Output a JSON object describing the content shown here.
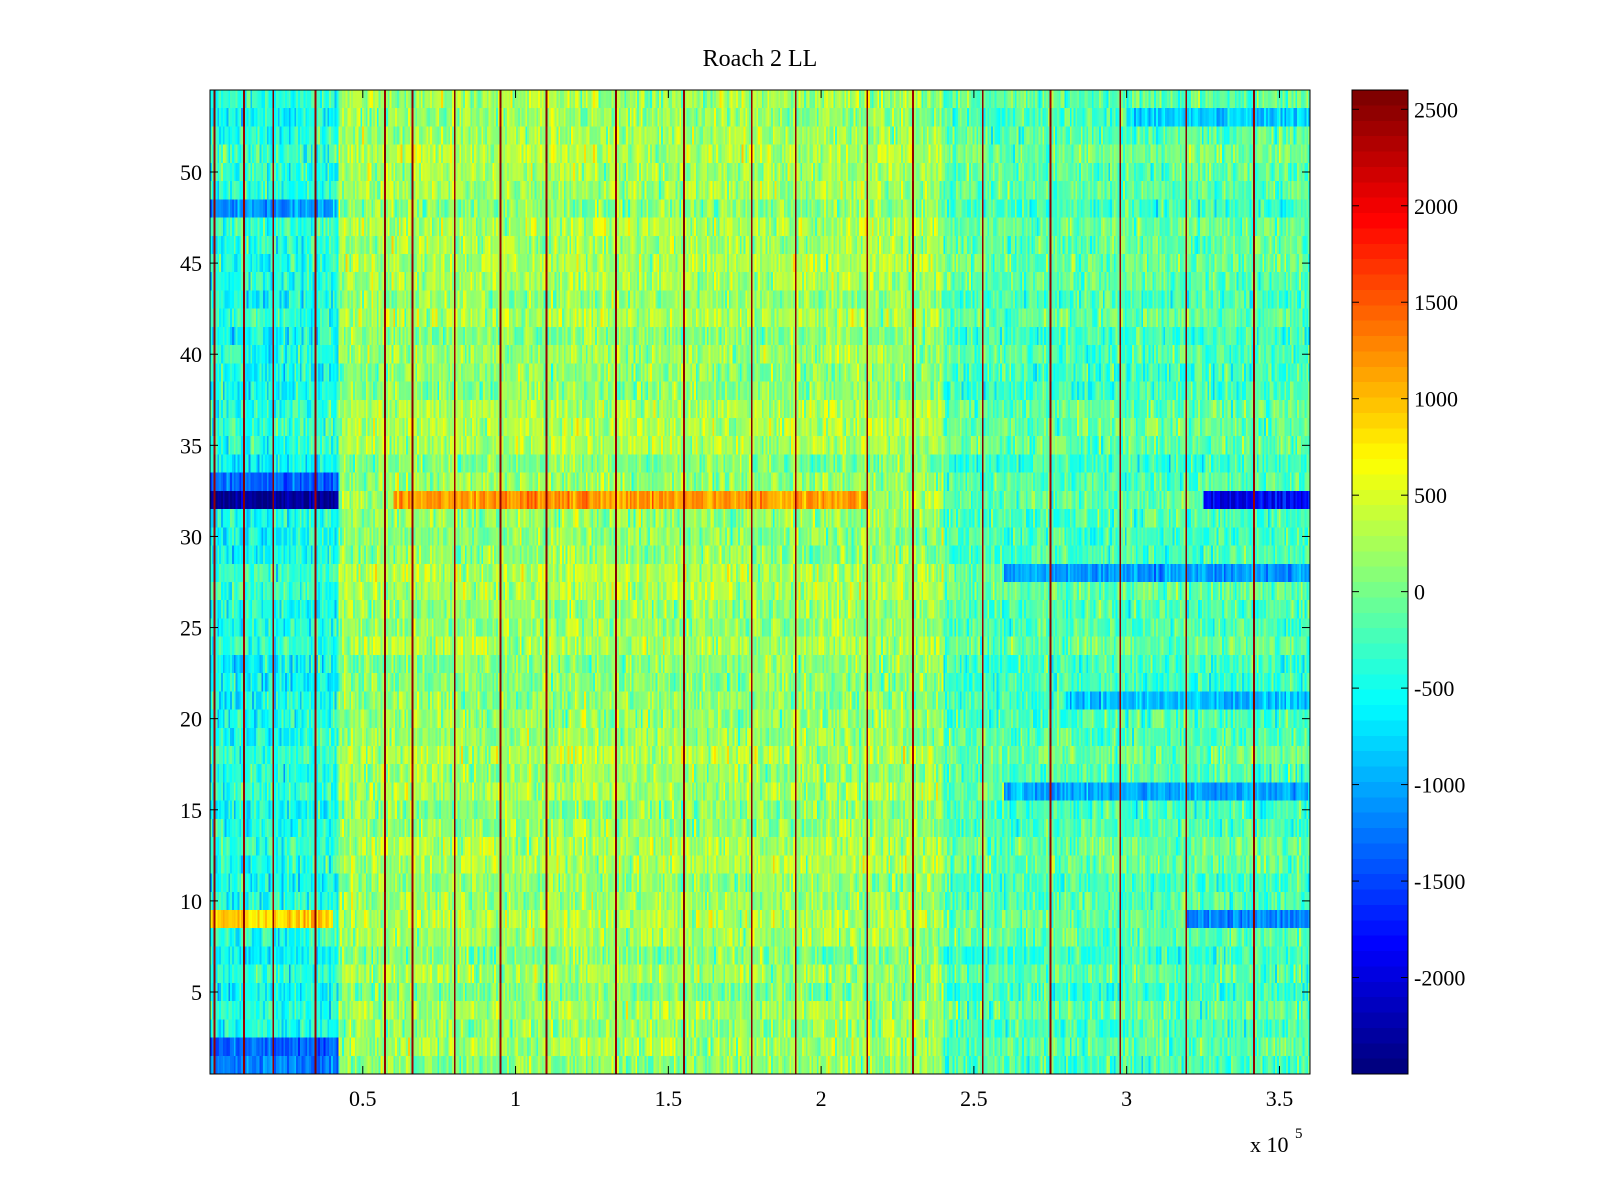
{
  "chart_data": {
    "type": "heatmap",
    "title": "Roach 2 LL",
    "xlabel": "",
    "ylabel": "",
    "xlim": [
      0,
      360000
    ],
    "ylim": [
      0.5,
      54.5
    ],
    "x_exponent_label": "x 10",
    "x_exponent": "5",
    "x_ticks": [
      {
        "value": 50000,
        "label": "0.5"
      },
      {
        "value": 100000,
        "label": "1"
      },
      {
        "value": 150000,
        "label": "1.5"
      },
      {
        "value": 200000,
        "label": "2"
      },
      {
        "value": 250000,
        "label": "2.5"
      },
      {
        "value": 300000,
        "label": "3"
      },
      {
        "value": 350000,
        "label": "3.5"
      }
    ],
    "y_ticks": [
      {
        "value": 5,
        "label": "5"
      },
      {
        "value": 10,
        "label": "10"
      },
      {
        "value": 15,
        "label": "15"
      },
      {
        "value": 20,
        "label": "20"
      },
      {
        "value": 25,
        "label": "25"
      },
      {
        "value": 30,
        "label": "30"
      },
      {
        "value": 35,
        "label": "35"
      },
      {
        "value": 40,
        "label": "40"
      },
      {
        "value": 45,
        "label": "45"
      },
      {
        "value": 50,
        "label": "50"
      }
    ],
    "colorbar": {
      "colormap": "jet",
      "clim": [
        -2500,
        2600
      ],
      "ticks": [
        {
          "value": 2500,
          "label": "2500"
        },
        {
          "value": 2000,
          "label": "2000"
        },
        {
          "value": 1500,
          "label": "1500"
        },
        {
          "value": 1000,
          "label": "1000"
        },
        {
          "value": 500,
          "label": "500"
        },
        {
          "value": 0,
          "label": "0"
        },
        {
          "value": -500,
          "label": "-500"
        },
        {
          "value": -1000,
          "label": "-1000"
        },
        {
          "value": -1500,
          "label": "-1500"
        },
        {
          "value": -2000,
          "label": "-2000"
        }
      ]
    },
    "rows": 54,
    "background_level": 0,
    "spike_columns_x": [
      1500,
      11000,
      20500,
      34000,
      57000,
      66000,
      80000,
      95000,
      110000,
      133000,
      155000,
      177000,
      192000,
      215000,
      230000,
      253000,
      275000,
      298000,
      320000,
      342000
    ],
    "spike_value": 2600,
    "row_bands": [
      {
        "row": 32,
        "x_start": 0,
        "x_end": 42000,
        "value": -2400
      },
      {
        "row": 33,
        "x_start": 0,
        "x_end": 42000,
        "value": -1400
      },
      {
        "row": 32,
        "x_start": 60000,
        "x_end": 215000,
        "value": 1200
      },
      {
        "row": 32,
        "x_start": 325000,
        "x_end": 360000,
        "value": -1900
      },
      {
        "row": 2,
        "x_start": 0,
        "x_end": 42000,
        "value": -1400
      },
      {
        "row": 1,
        "x_start": 0,
        "x_end": 42000,
        "value": -1200
      },
      {
        "row": 9,
        "x_start": 0,
        "x_end": 40000,
        "value": 900
      },
      {
        "row": 48,
        "x_start": 0,
        "x_end": 40000,
        "value": -1100
      },
      {
        "row": 28,
        "x_start": 260000,
        "x_end": 360000,
        "value": -1100
      },
      {
        "row": 21,
        "x_start": 280000,
        "x_end": 360000,
        "value": -900
      },
      {
        "row": 16,
        "x_start": 260000,
        "x_end": 360000,
        "value": -1000
      },
      {
        "row": 9,
        "x_start": 320000,
        "x_end": 360000,
        "value": -1200
      },
      {
        "row": 53,
        "x_start": 300000,
        "x_end": 360000,
        "value": -800
      }
    ]
  }
}
